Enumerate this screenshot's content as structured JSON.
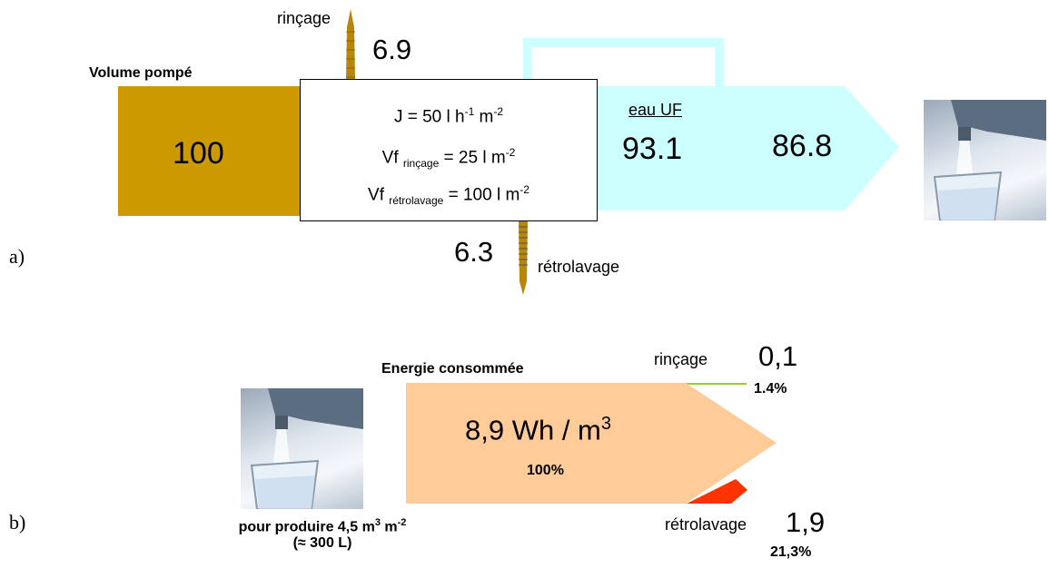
{
  "part_a": {
    "label": "a)",
    "volume_title": "Volume pompé",
    "inflow_value": "100",
    "rincage_label": "rinçage",
    "rincage_value": "6.9",
    "retro_label": "rétrolavage",
    "retro_value": "6.3",
    "eau_uf_label": "eau UF",
    "eau_uf_value": "93.1",
    "output_value": "86.8",
    "box": {
      "j_prefix": "J = 50 l h",
      "j_exp1": "-1",
      "j_mid": " m",
      "j_exp2": "-2",
      "vf1_prefix": "Vf ",
      "vf1_sub": "rinçage",
      "vf1_mid": " = 25 l m",
      "vf1_exp": "-2",
      "vf2_prefix": "Vf ",
      "vf2_sub": "rétrolavage",
      "vf2_mid": " = 100 l m",
      "vf2_exp": "-2"
    }
  },
  "part_b": {
    "label": "b)",
    "energie_title": "Energie consommée",
    "energy_value": "8,9 Wh / m",
    "energy_exp": "3",
    "energy_pct": "100%",
    "rincage_label": "rinçage",
    "rincage_value": "0,1",
    "rincage_pct": "1.4%",
    "retro_label": "rétrolavage",
    "retro_value": "1,9",
    "retro_pct": "21,3%",
    "caption_line1_prefix": "pour produire 4,5 m",
    "caption_line1_exp1": "3",
    "caption_line1_mid": " m",
    "caption_line1_exp2": "-2",
    "caption_line2": "(≈ 300 L)"
  },
  "colors": {
    "inflow": "#cc9900",
    "water": "#ccffff",
    "energy": "#ffcc99",
    "rincage_energy": "#99cc33",
    "retro_energy": "#ff3300"
  },
  "icons": [
    "water-glass-image",
    "water-glass-image"
  ]
}
